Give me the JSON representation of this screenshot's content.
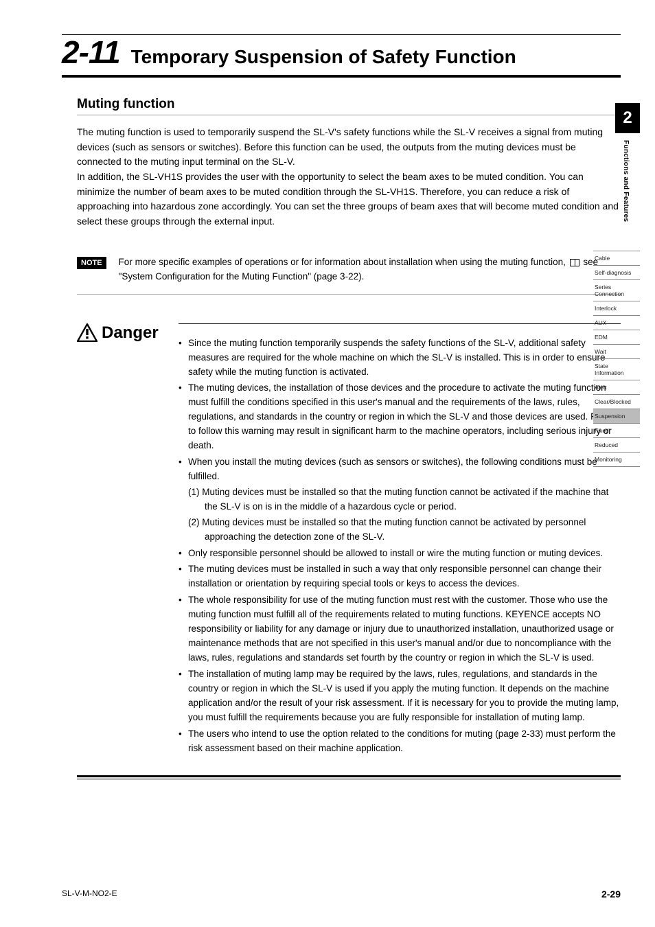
{
  "header": {
    "section_number": "2-11",
    "section_title": "Temporary Suspension of Safety Function"
  },
  "subheading": "Muting function",
  "intro_paragraph": "The muting function is used to temporarily suspend the SL-V's safety functions while the SL-V receives a signal from muting devices (such as sensors or switches).  Before this function can be used, the outputs from the muting devices must be connected to the muting input terminal on the SL-V.\nIn addition, the SL-VH1S provides the user with the opportunity to select the beam axes to be muted condition. You can minimize the number of beam axes to be muted condition through the SL-VH1S. Therefore, you can reduce a risk of approaching into hazardous zone accordingly. You can set the three groups of beam axes that will become muted condition and select these groups through the external input.",
  "note": {
    "badge": "NOTE",
    "text_before": "For more specific examples of operations or for information about installation when using the muting function, ",
    "text_after": " see \"System Configuration for the Muting Function\" (page 3-22)."
  },
  "danger": {
    "label": "Danger",
    "bullets": [
      "Since the muting function temporarily suspends the safety functions of the SL-V, additional safety measures are required for the whole machine on which the SL-V is installed.  This is in order to ensure safety while the muting function is activated.",
      "The muting devices, the installation of those devices and the procedure to activate the muting function must fulfill the conditions specified in this user's manual and the requirements of the laws, rules, regulations, and standards in the country or region in which the SL-V and those devices are used. Failure to follow this warning may result in significant harm to the machine operators, including serious injury or death.",
      "When you install the muting devices (such as sensors or switches), the following conditions must be fulfilled.",
      "Only responsible personnel should be allowed to install or wire the muting function or muting devices.",
      "The muting devices must be installed in such a way that only responsible personnel can change their installation or orientation by requiring special tools or keys to access the devices.",
      "The whole responsibility for use of the muting function must rest with the customer.  Those who use the muting function must fulfill all of the requirements related to muting functions. KEYENCE accepts NO responsibility or liability for any damage or injury due to unauthorized installation, unauthorized usage or maintenance methods that are not specified in this user's manual and/or due to noncompliance with the laws, rules, regulations and standards set fourth by the country or region in which the SL-V is used.",
      "The installation of muting lamp may be required by the laws, rules, regulations, and standards in the country or region in which the SL-V is used if you apply the muting function. It depends on the machine application and/or the result of your risk assessment. If it is necessary for you to provide the muting lamp, you must fulfill the requirements because you are fully responsible for installation of muting lamp.",
      "The users who intend to use the option related to the conditions for muting (page 2-33) must perform the risk assessment based on their machine application."
    ],
    "sub_bullets": [
      "(1) Muting devices must be installed so that the muting function cannot be activated if the machine that the SL-V is on is in the middle of a hazardous cycle or period.",
      "(2) Muting devices must be installed so that the muting function cannot be activated by personnel approaching the detection zone of the SL-V."
    ]
  },
  "side": {
    "chapter_number": "2",
    "chapter_label": "Functions and Features",
    "index": [
      {
        "label": "Cable",
        "active": false
      },
      {
        "label": "Self-diagnosis",
        "active": false
      },
      {
        "label": "Series Connection",
        "active": false
      },
      {
        "label": "Interlock",
        "active": false
      },
      {
        "label": "AUX",
        "active": false
      },
      {
        "label": "EDM",
        "active": false
      },
      {
        "label": "Wait",
        "active": false
      },
      {
        "label": "State Information",
        "active": false
      },
      {
        "label": "Alert",
        "active": false
      },
      {
        "label": "Clear/Blocked",
        "active": false
      },
      {
        "label": "Suspension",
        "active": true
      },
      {
        "label": "Fixed",
        "active": false
      },
      {
        "label": "Reduced",
        "active": false
      },
      {
        "label": "Monitoring",
        "active": false
      }
    ]
  },
  "footer": {
    "doc_code": "SL-V-M-NO2-E",
    "page_number": "2-29"
  },
  "colors": {
    "text": "#000000",
    "bg": "#ffffff",
    "tab_active_bg": "#bbbbbb",
    "rule_gray": "#999999"
  },
  "fonts": {
    "body_size_pt": 10,
    "title_size_pt": 21,
    "secnum_size_pt": 34
  }
}
